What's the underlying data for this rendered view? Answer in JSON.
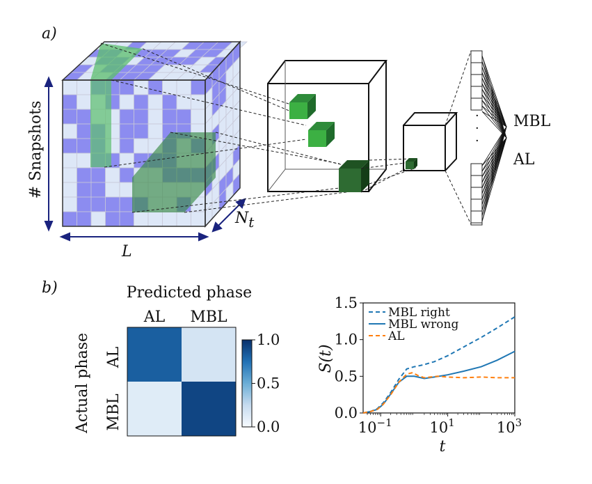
{
  "panel_a": {
    "label": "a)",
    "snapshots_axis": "# Snapshots",
    "size_axis": "L",
    "time_axis": "N",
    "time_axis_sub": "t",
    "outputs": [
      "MBL",
      "AL"
    ],
    "ellipsis": "·\n·\n·",
    "colors": {
      "lavender": "#8c8cf0",
      "pale": "#dde7f7",
      "green": "#5cbf6d",
      "dark_green": "#2e6b32",
      "bright_green": "#3cb043"
    }
  },
  "panel_b": {
    "label": "b)",
    "confusion": {
      "title": "Predicted phase",
      "ylabel": "Actual phase",
      "col_labels": [
        "AL",
        "MBL"
      ],
      "row_labels": [
        "AL",
        "MBL"
      ],
      "values": [
        [
          0.82,
          0.18
        ],
        [
          0.12,
          0.92
        ]
      ],
      "colorbar_ticks": [
        "1.0",
        "0.5",
        "0.0"
      ],
      "colorbar_tick_values": [
        1.0,
        0.5,
        0.0
      ],
      "colormap": [
        "#f7fbff",
        "#c6dbef",
        "#6baed6",
        "#2171b5",
        "#08306b"
      ]
    }
  },
  "chart_data": {
    "type": "line",
    "ylabel_main": "S",
    "ylabel_arg": "(t)",
    "xlabel": "t",
    "x_scale": "log",
    "xlim": [
      0.03,
      1000
    ],
    "ylim": [
      0,
      1.5
    ],
    "yticks": [
      0.0,
      0.5,
      1.0,
      1.5
    ],
    "ytick_labels": [
      "0.0",
      "0.5",
      "1.0",
      "1.5"
    ],
    "xticks": [
      0.1,
      10,
      1000
    ],
    "xtick_base": "10",
    "xtick_exponents": [
      "−1",
      "1",
      "3"
    ],
    "legend_position": "top-left",
    "series": [
      {
        "name": "MBL right",
        "style": "dashed",
        "color": "#1f77b4",
        "x": [
          0.03,
          0.05,
          0.08,
          0.12,
          0.2,
          0.35,
          0.6,
          1.0,
          1.3,
          2,
          4,
          10,
          30,
          100,
          300,
          1000
        ],
        "y": [
          0.0,
          0.02,
          0.06,
          0.14,
          0.28,
          0.46,
          0.6,
          0.63,
          0.64,
          0.66,
          0.7,
          0.78,
          0.9,
          1.03,
          1.16,
          1.31
        ]
      },
      {
        "name": "MBL wrong",
        "style": "solid",
        "color": "#1f77b4",
        "x": [
          0.03,
          0.05,
          0.08,
          0.12,
          0.2,
          0.35,
          0.6,
          1.0,
          2,
          4,
          10,
          30,
          100,
          300,
          1000
        ],
        "y": [
          0.0,
          0.02,
          0.05,
          0.12,
          0.26,
          0.42,
          0.5,
          0.5,
          0.47,
          0.49,
          0.52,
          0.57,
          0.63,
          0.72,
          0.84
        ]
      },
      {
        "name": "AL",
        "style": "dashed",
        "color": "#ff7f0e",
        "x": [
          0.03,
          0.05,
          0.08,
          0.12,
          0.2,
          0.35,
          0.6,
          0.9,
          1.3,
          2,
          5,
          10,
          30,
          100,
          300,
          1000
        ],
        "y": [
          0.0,
          0.02,
          0.05,
          0.12,
          0.25,
          0.42,
          0.53,
          0.55,
          0.51,
          0.48,
          0.5,
          0.49,
          0.48,
          0.49,
          0.48,
          0.48
        ]
      }
    ]
  }
}
